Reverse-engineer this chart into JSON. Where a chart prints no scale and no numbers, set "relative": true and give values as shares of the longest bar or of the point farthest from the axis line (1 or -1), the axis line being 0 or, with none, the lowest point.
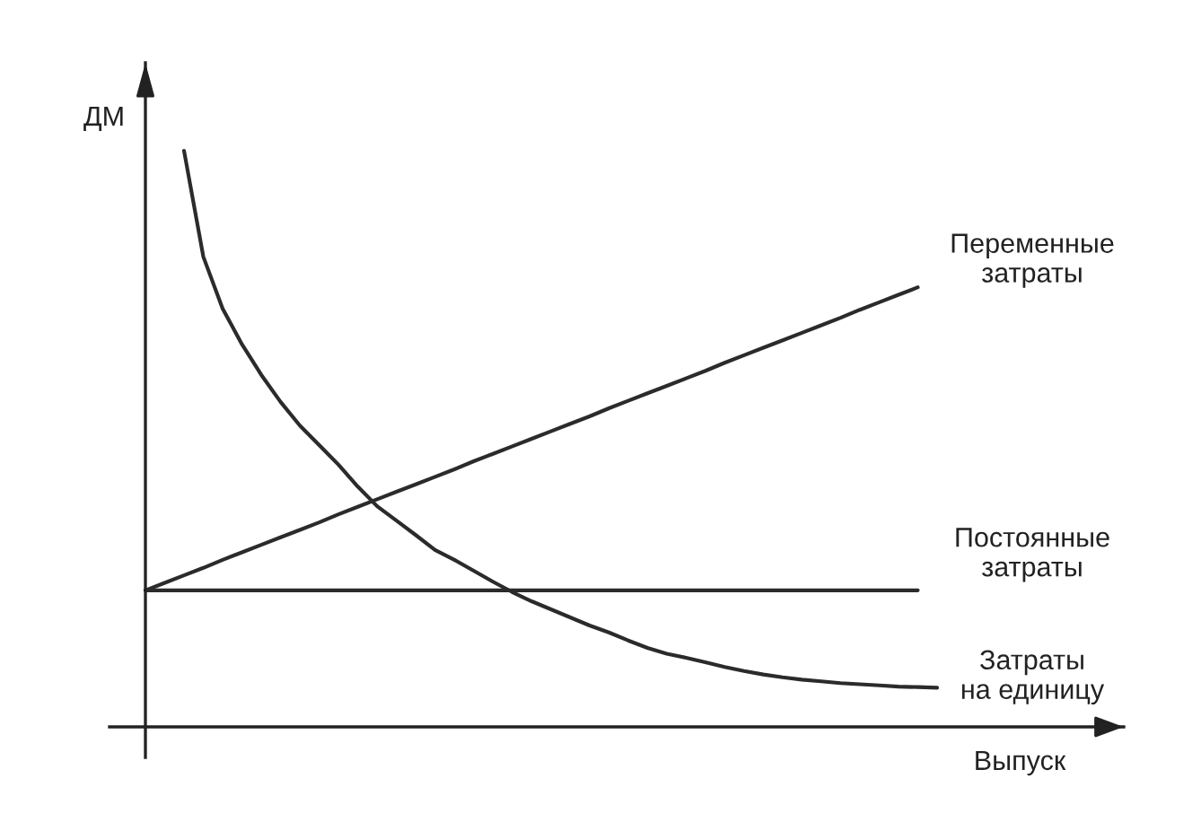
{
  "chart_data": {
    "type": "line",
    "relative": true,
    "tick_labels": false,
    "xlabel": "Выпуск",
    "ylabel": "ДМ",
    "categories": [
      null,
      null,
      null,
      null,
      null,
      null,
      null,
      null,
      null,
      null,
      null,
      null,
      null,
      null,
      null,
      null,
      null,
      null,
      null,
      null,
      null,
      null,
      null,
      null,
      null,
      null,
      null,
      null,
      null,
      null,
      null,
      null,
      null,
      null,
      null,
      null,
      null,
      null,
      null,
      null,
      null,
      null
    ],
    "series": [
      {
        "name": "Переменные\nзатраты",
        "color": "#2b2b2b",
        "values": [
          0.237,
          0.25,
          0.263,
          0.276,
          0.29,
          0.303,
          0.316,
          0.329,
          0.342,
          0.355,
          0.369,
          0.382,
          0.395,
          0.408,
          0.421,
          0.434,
          0.447,
          0.461,
          0.474,
          0.487,
          0.5,
          0.513,
          0.526,
          0.539,
          0.553,
          0.566,
          0.579,
          0.592,
          0.605,
          0.618,
          0.632,
          0.645,
          0.658,
          0.671,
          0.684,
          0.697,
          0.71,
          0.724,
          0.737,
          0.75,
          0.763,
          null
        ]
      },
      {
        "name": "Постоянные\nзатраты",
        "color": "#2b2b2b",
        "values": [
          0.237,
          0.237,
          0.237,
          0.237,
          0.237,
          0.237,
          0.237,
          0.237,
          0.237,
          0.237,
          0.237,
          0.237,
          0.237,
          0.237,
          0.237,
          0.237,
          0.237,
          0.237,
          0.237,
          0.237,
          0.237,
          0.237,
          0.237,
          0.237,
          0.237,
          0.237,
          0.237,
          0.237,
          0.237,
          0.237,
          0.237,
          0.237,
          0.237,
          0.237,
          0.237,
          0.237,
          0.237,
          0.237,
          0.237,
          0.237,
          0.237,
          null
        ]
      },
      {
        "name": "Затраты\nна единицу",
        "color": "#2b2b2b",
        "values": [
          null,
          null,
          1.0,
          0.816,
          0.726,
          0.664,
          0.611,
          0.564,
          0.523,
          0.489,
          0.455,
          0.417,
          0.383,
          0.358,
          0.333,
          0.307,
          0.29,
          0.271,
          0.252,
          0.234,
          0.218,
          0.204,
          0.19,
          0.176,
          0.164,
          0.15,
          0.137,
          0.127,
          0.12,
          0.112,
          0.104,
          0.097,
          0.091,
          0.086,
          0.082,
          0.079,
          0.076,
          0.074,
          0.072,
          0.07,
          0.069,
          0.068
        ]
      }
    ]
  }
}
